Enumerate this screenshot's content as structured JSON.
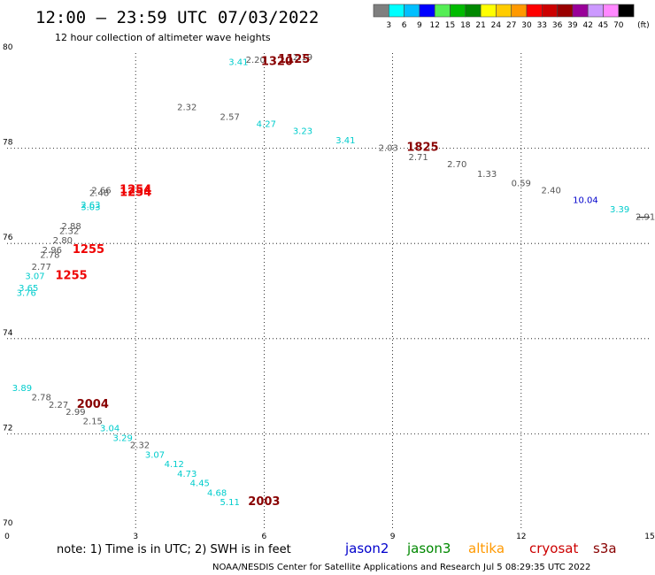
{
  "header": {
    "title": "12:00 — 23:59 UTC 07/03/2022",
    "subtitle": "12 hour collection of altimeter wave heights"
  },
  "colorbar": {
    "labels": [
      "3",
      "6",
      "9",
      "12",
      "15",
      "18",
      "21",
      "24",
      "27",
      "30",
      "33",
      "36",
      "39",
      "42",
      "45",
      "70"
    ],
    "unit": "(ft)",
    "colors": [
      "#7f7f7f",
      "#00ffff",
      "#00bfff",
      "#0000ff",
      "#55ee55",
      "#00bb00",
      "#008800",
      "#ffff00",
      "#ffcc00",
      "#ff9900",
      "#ff0000",
      "#cc0000",
      "#990000",
      "#990099",
      "#cc99ff",
      "#ff88ff",
      "#000000"
    ]
  },
  "footer": {
    "note": "note: 1) Time is in UTC; 2) SWH is in feet",
    "satellites": [
      {
        "name": "jason2",
        "color": "#0000cc"
      },
      {
        "name": "jason3",
        "color": "#008800"
      },
      {
        "name": "altika",
        "color": "#ff9900"
      },
      {
        "name": "cryosat",
        "color": "#cc0000"
      },
      {
        "name": "s3a",
        "color": "#880000"
      }
    ],
    "credit": "NOAA/NESDIS Center for Satellite Applications and Research   Jul  5 08:29:35 UTC 2022"
  },
  "chart_data": {
    "type": "scatter",
    "xlim": [
      0,
      15
    ],
    "ylim": [
      70,
      80
    ],
    "x_ticks": [
      0,
      3,
      6,
      9,
      12,
      15
    ],
    "y_ticks": [
      70,
      72,
      74,
      76,
      78,
      80
    ],
    "grid": "dotted",
    "points": [
      {
        "x": 6.9,
        "y": 79.85,
        "label": "2.19",
        "color": "#555555"
      },
      {
        "x": 5.8,
        "y": 79.8,
        "label": "2.20",
        "color": "#555555"
      },
      {
        "x": 6.7,
        "y": 79.8,
        "label": "1125",
        "color": "#880000",
        "kind": "time"
      },
      {
        "x": 5.4,
        "y": 79.75,
        "label": "3.41",
        "color": "#00cccc"
      },
      {
        "x": 6.3,
        "y": 79.75,
        "label": "1320",
        "color": "#880000",
        "kind": "time"
      },
      {
        "x": 4.2,
        "y": 78.8,
        "label": "2.32",
        "color": "#555555"
      },
      {
        "x": 5.2,
        "y": 78.6,
        "label": "2.57",
        "color": "#555555"
      },
      {
        "x": 6.05,
        "y": 78.45,
        "label": "4.27",
        "color": "#00cccc"
      },
      {
        "x": 6.9,
        "y": 78.3,
        "label": "3.23",
        "color": "#00cccc"
      },
      {
        "x": 7.9,
        "y": 78.1,
        "label": "3.41",
        "color": "#00cccc"
      },
      {
        "x": 8.9,
        "y": 77.95,
        "label": "2.03",
        "color": "#555555"
      },
      {
        "x": 9.7,
        "y": 77.95,
        "label": "1825",
        "color": "#880000",
        "kind": "time"
      },
      {
        "x": 9.6,
        "y": 77.75,
        "label": "2.71",
        "color": "#555555"
      },
      {
        "x": 10.5,
        "y": 77.6,
        "label": "2.70",
        "color": "#555555"
      },
      {
        "x": 11.2,
        "y": 77.4,
        "label": "1.33",
        "color": "#555555"
      },
      {
        "x": 12.0,
        "y": 77.2,
        "label": "0.59",
        "color": "#555555"
      },
      {
        "x": 12.7,
        "y": 77.05,
        "label": "2.40",
        "color": "#555555"
      },
      {
        "x": 13.5,
        "y": 76.85,
        "label": "10.04",
        "color": "#0000cc"
      },
      {
        "x": 14.3,
        "y": 76.65,
        "label": "3.39",
        "color": "#00cccc"
      },
      {
        "x": 14.9,
        "y": 76.5,
        "label": "2.91",
        "color": "#555555"
      },
      {
        "x": 2.2,
        "y": 77.05,
        "label": "2.66",
        "color": "#555555"
      },
      {
        "x": 2.15,
        "y": 77.0,
        "label": "2.48",
        "color": "#555555"
      },
      {
        "x": 3.0,
        "y": 77.05,
        "label": "1254",
        "color": "#ee0000",
        "kind": "time"
      },
      {
        "x": 3.0,
        "y": 77.0,
        "label": "1254",
        "color": "#ee0000",
        "kind": "time"
      },
      {
        "x": 1.95,
        "y": 76.75,
        "label": "2.63",
        "color": "#00cccc"
      },
      {
        "x": 1.95,
        "y": 76.7,
        "label": "3.03",
        "color": "#00cccc"
      },
      {
        "x": 1.5,
        "y": 76.3,
        "label": "2.88",
        "color": "#555555"
      },
      {
        "x": 1.45,
        "y": 76.2,
        "label": "2.32",
        "color": "#555555"
      },
      {
        "x": 1.3,
        "y": 76.0,
        "label": "2.80",
        "color": "#555555"
      },
      {
        "x": 1.05,
        "y": 75.8,
        "label": "2.96",
        "color": "#555555"
      },
      {
        "x": 1.0,
        "y": 75.7,
        "label": "2.78",
        "color": "#555555"
      },
      {
        "x": 1.9,
        "y": 75.8,
        "label": "1255",
        "color": "#ee0000",
        "kind": "time"
      },
      {
        "x": 0.8,
        "y": 75.45,
        "label": "2.77",
        "color": "#555555"
      },
      {
        "x": 0.65,
        "y": 75.25,
        "label": "3.07",
        "color": "#00cccc"
      },
      {
        "x": 1.5,
        "y": 75.25,
        "label": "1255",
        "color": "#ee0000",
        "kind": "time"
      },
      {
        "x": 0.5,
        "y": 75.0,
        "label": "3.65",
        "color": "#00cccc"
      },
      {
        "x": 0.45,
        "y": 74.9,
        "label": "3.76",
        "color": "#00cccc"
      },
      {
        "x": 0.35,
        "y": 72.9,
        "label": "3.89",
        "color": "#00cccc"
      },
      {
        "x": 0.8,
        "y": 72.7,
        "label": "2.78",
        "color": "#555555"
      },
      {
        "x": 1.2,
        "y": 72.55,
        "label": "2.27",
        "color": "#555555"
      },
      {
        "x": 2.0,
        "y": 72.55,
        "label": "2004",
        "color": "#880000",
        "kind": "time"
      },
      {
        "x": 1.6,
        "y": 72.4,
        "label": "2.99",
        "color": "#555555"
      },
      {
        "x": 2.0,
        "y": 72.2,
        "label": "2.15",
        "color": "#555555"
      },
      {
        "x": 2.4,
        "y": 72.05,
        "label": "3.04",
        "color": "#00cccc"
      },
      {
        "x": 2.7,
        "y": 71.85,
        "label": "3.29",
        "color": "#00cccc"
      },
      {
        "x": 3.1,
        "y": 71.7,
        "label": "2.32",
        "color": "#555555"
      },
      {
        "x": 3.45,
        "y": 71.5,
        "label": "3.07",
        "color": "#00cccc"
      },
      {
        "x": 3.9,
        "y": 71.3,
        "label": "4.12",
        "color": "#00cccc"
      },
      {
        "x": 4.2,
        "y": 71.1,
        "label": "4.73",
        "color": "#00cccc"
      },
      {
        "x": 4.5,
        "y": 70.9,
        "label": "4.45",
        "color": "#00cccc"
      },
      {
        "x": 4.9,
        "y": 70.7,
        "label": "4.68",
        "color": "#00cccc"
      },
      {
        "x": 5.2,
        "y": 70.5,
        "label": "5.11",
        "color": "#00cccc"
      },
      {
        "x": 6.0,
        "y": 70.5,
        "label": "2003",
        "color": "#880000",
        "kind": "time"
      }
    ]
  }
}
